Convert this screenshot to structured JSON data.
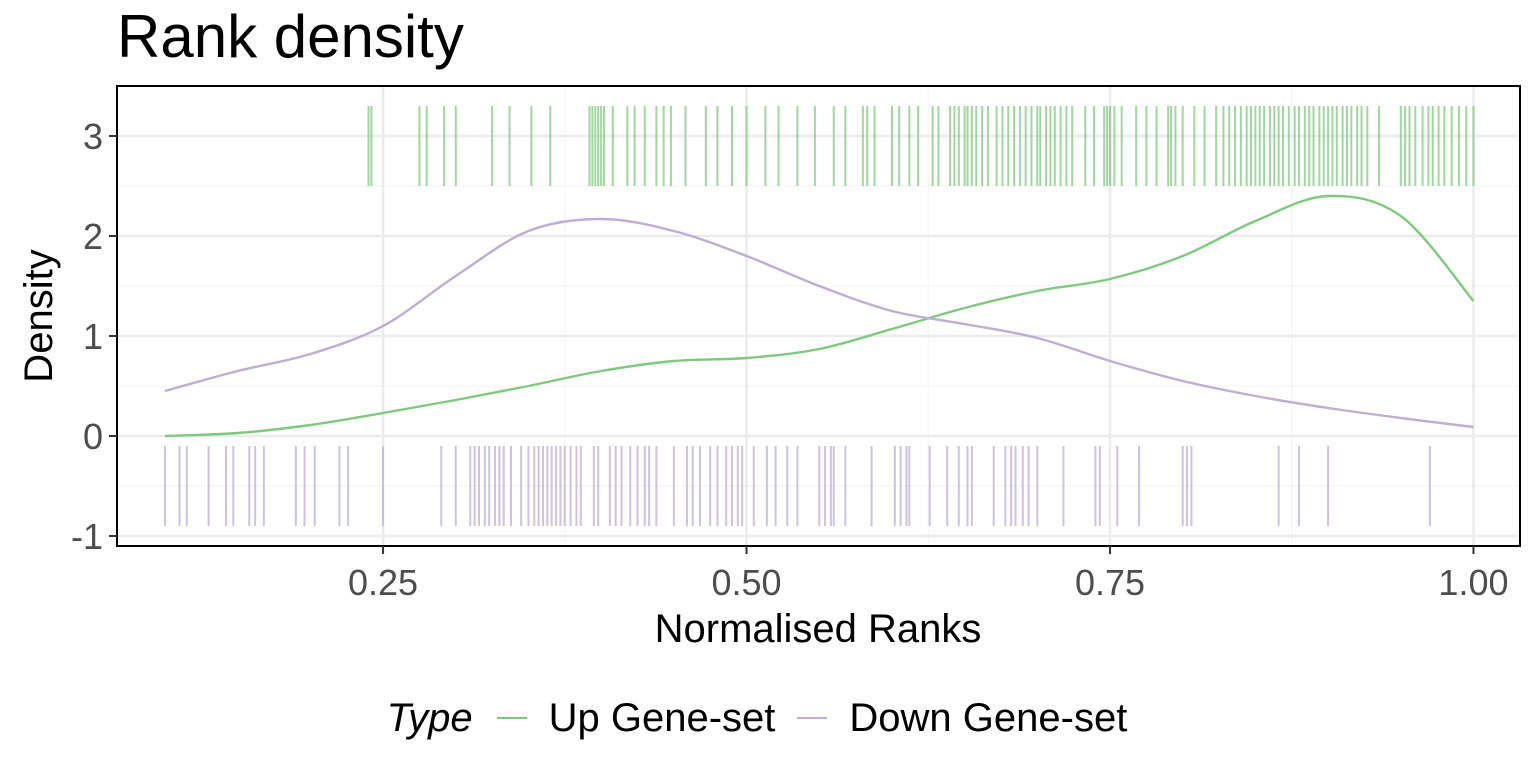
{
  "chart_data": {
    "type": "line",
    "title": "Rank density",
    "xlabel": "Normalised Ranks",
    "ylabel": "Density",
    "xlim": [
      0.067,
      1.032
    ],
    "ylim": [
      -1.1,
      3.5
    ],
    "xticks": [
      0.25,
      0.5,
      0.75,
      1.0
    ],
    "xtick_labels": [
      "0.25",
      "0.50",
      "0.75",
      "1.00"
    ],
    "yticks": [
      -1,
      0,
      1,
      2,
      3
    ],
    "ytick_labels": [
      "-1",
      "0",
      "1",
      "2",
      "3"
    ],
    "grid": true,
    "legend": {
      "title": "Type",
      "position": "bottom",
      "entries": [
        "Up Gene-set",
        "Down Gene-set"
      ]
    },
    "series": [
      {
        "name": "Up Gene-set",
        "color": "#7FC97F",
        "x": [
          0.1,
          0.15,
          0.2,
          0.25,
          0.3,
          0.35,
          0.4,
          0.45,
          0.5,
          0.55,
          0.6,
          0.65,
          0.7,
          0.75,
          0.8,
          0.85,
          0.9,
          0.95,
          1.0
        ],
        "y": [
          0.0,
          0.03,
          0.11,
          0.23,
          0.36,
          0.5,
          0.65,
          0.75,
          0.78,
          0.87,
          1.07,
          1.28,
          1.45,
          1.57,
          1.8,
          2.15,
          2.4,
          2.2,
          1.35
        ],
        "rug_y": [
          2.5,
          3.3
        ],
        "rug": [
          0.24,
          0.242,
          0.275,
          0.28,
          0.292,
          0.3,
          0.325,
          0.337,
          0.352,
          0.365,
          0.392,
          0.394,
          0.396,
          0.398,
          0.4,
          0.402,
          0.408,
          0.418,
          0.423,
          0.43,
          0.438,
          0.443,
          0.448,
          0.458,
          0.472,
          0.48,
          0.49,
          0.5,
          0.513,
          0.522,
          0.535,
          0.547,
          0.56,
          0.568,
          0.58,
          0.583,
          0.588,
          0.6,
          0.605,
          0.612,
          0.618,
          0.628,
          0.632,
          0.64,
          0.643,
          0.646,
          0.65,
          0.652,
          0.655,
          0.658,
          0.662,
          0.666,
          0.672,
          0.676,
          0.68,
          0.684,
          0.688,
          0.692,
          0.696,
          0.7,
          0.702,
          0.706,
          0.709,
          0.712,
          0.716,
          0.72,
          0.724,
          0.733,
          0.739,
          0.746,
          0.748,
          0.75,
          0.753,
          0.758,
          0.768,
          0.775,
          0.782,
          0.79,
          0.792,
          0.795,
          0.8,
          0.808,
          0.815,
          0.823,
          0.828,
          0.832,
          0.836,
          0.84,
          0.844,
          0.847,
          0.85,
          0.853,
          0.856,
          0.86,
          0.863,
          0.866,
          0.869,
          0.873,
          0.877,
          0.88,
          0.884,
          0.887,
          0.89,
          0.894,
          0.897,
          0.9,
          0.903,
          0.906,
          0.91,
          0.913,
          0.916,
          0.92,
          0.923,
          0.927,
          0.935,
          0.95,
          0.953,
          0.956,
          0.96,
          0.965,
          0.969,
          0.972,
          0.976,
          0.98,
          0.985,
          0.99,
          0.995,
          1.0
        ]
      },
      {
        "name": "Down Gene-set",
        "color": "#BEAED4",
        "x": [
          0.1,
          0.15,
          0.2,
          0.25,
          0.3,
          0.35,
          0.4,
          0.45,
          0.5,
          0.55,
          0.6,
          0.65,
          0.7,
          0.75,
          0.8,
          0.85,
          0.9,
          0.95,
          1.0
        ],
        "y": [
          0.45,
          0.65,
          0.82,
          1.1,
          1.6,
          2.05,
          2.17,
          2.05,
          1.8,
          1.5,
          1.25,
          1.12,
          0.98,
          0.75,
          0.55,
          0.4,
          0.28,
          0.18,
          0.09
        ],
        "rug_y": [
          -0.1,
          -0.9
        ],
        "rug": [
          0.1,
          0.11,
          0.115,
          0.13,
          0.142,
          0.147,
          0.158,
          0.162,
          0.168,
          0.19,
          0.196,
          0.203,
          0.22,
          0.226,
          0.25,
          0.29,
          0.3,
          0.31,
          0.313,
          0.316,
          0.32,
          0.323,
          0.327,
          0.33,
          0.333,
          0.338,
          0.345,
          0.35,
          0.354,
          0.357,
          0.36,
          0.363,
          0.366,
          0.369,
          0.372,
          0.375,
          0.379,
          0.383,
          0.386,
          0.395,
          0.398,
          0.406,
          0.41,
          0.414,
          0.42,
          0.425,
          0.43,
          0.433,
          0.438,
          0.45,
          0.459,
          0.463,
          0.468,
          0.475,
          0.48,
          0.486,
          0.49,
          0.494,
          0.497,
          0.505,
          0.514,
          0.52,
          0.528,
          0.535,
          0.55,
          0.554,
          0.558,
          0.56,
          0.568,
          0.586,
          0.602,
          0.606,
          0.61,
          0.612,
          0.626,
          0.638,
          0.646,
          0.652,
          0.655,
          0.67,
          0.678,
          0.682,
          0.685,
          0.69,
          0.694,
          0.7,
          0.718,
          0.74,
          0.743,
          0.755,
          0.77,
          0.8,
          0.803,
          0.806,
          0.866,
          0.88,
          0.9,
          0.97
        ]
      }
    ]
  }
}
